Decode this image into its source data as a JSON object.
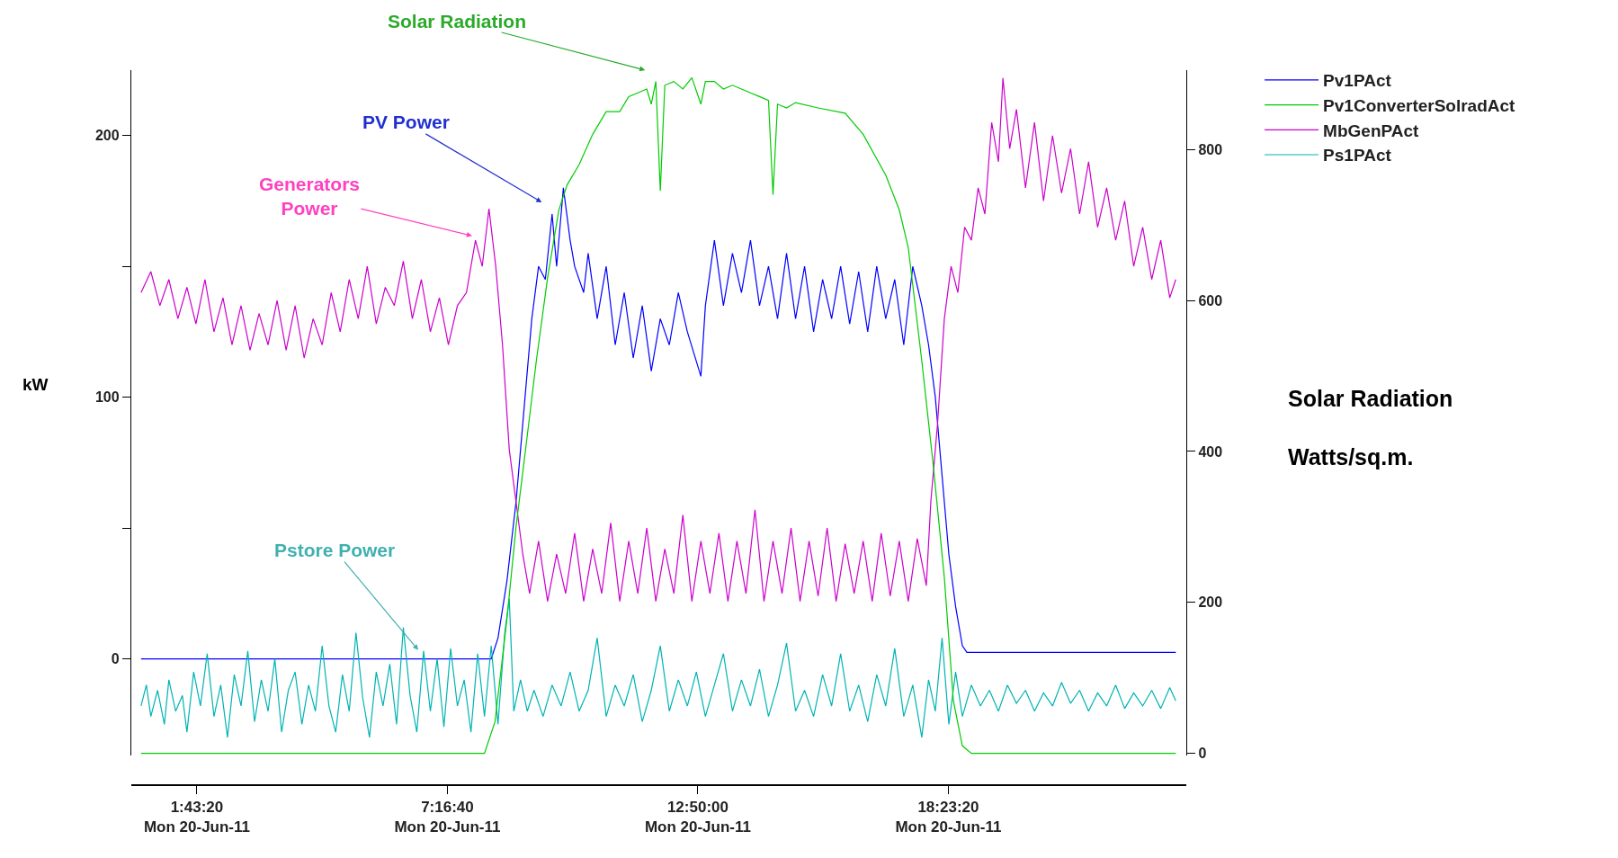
{
  "chart_data": {
    "type": "line",
    "ylabel": "kW",
    "y2label": "Solar Radiation\nWatts/sq.m.",
    "legend": "top right",
    "annotations": [
      "Solar Radiation",
      "PV Power",
      "Generators\nPower",
      "Pstore Power"
    ],
    "xlim": [
      "--06-20T00:16",
      "--06-20T23:40"
    ],
    "xticks": [
      {
        "value": "--06-20T01:43:20",
        "label": "1:43:20\nMon 20-Jun-11"
      },
      {
        "value": "--06-20T07:16:40",
        "label": "7:16:40\nMon 20-Jun-11"
      },
      {
        "value": "--06-20T12:50:00",
        "label": "12:50:00\nMon 20-Jun-11"
      },
      {
        "value": "--06-20T18:23:20",
        "label": "18:23:20\nMon 20-Jun-11"
      }
    ],
    "ylim": [
      -37,
      225
    ],
    "yticks": [
      0,
      {
        "value": 50,
        "label": null
      },
      100,
      {
        "value": 150,
        "label": null
      },
      200
    ],
    "y2lim": [
      -3,
      905
    ],
    "y2ticks": [
      0,
      200,
      400,
      600,
      800
    ],
    "series": [
      {
        "name": "Pv1PAct",
        "color": "#0000ff",
        "x": [
          "--06-20T00:29",
          "--06-20T08:15",
          "--06-20T08:24",
          "--06-20T08:36",
          "--06-20T08:48",
          "--06-20T09:00",
          "--06-20T09:09",
          "--06-20T09:18",
          "--06-20T09:27",
          "--06-20T09:36",
          "--06-20T09:42",
          "--06-20T09:51",
          "--06-20T10:00",
          "--06-20T10:06",
          "--06-20T10:18",
          "--06-20T10:24",
          "--06-20T10:36",
          "--06-20T10:48",
          "--06-20T11:00",
          "--06-20T11:12",
          "--06-20T11:24",
          "--06-20T11:36",
          "--06-20T11:48",
          "--06-20T12:00",
          "--06-20T12:12",
          "--06-20T12:24",
          "--06-20T12:36",
          "--06-20T12:54",
          "--06-20T13:00",
          "--06-20T13:12",
          "--06-20T13:24",
          "--06-20T13:36",
          "--06-20T13:48",
          "--06-20T14:00",
          "--06-20T14:12",
          "--06-20T14:24",
          "--06-20T14:36",
          "--06-20T14:48",
          "--06-20T15:00",
          "--06-20T15:12",
          "--06-20T15:24",
          "--06-20T15:36",
          "--06-20T15:48",
          "--06-20T16:00",
          "--06-20T16:12",
          "--06-20T16:24",
          "--06-20T16:36",
          "--06-20T16:48",
          "--06-20T17:00",
          "--06-20T17:12",
          "--06-20T17:24",
          "--06-20T17:36",
          "--06-20T17:48",
          "--06-20T17:57",
          "--06-20T18:06",
          "--06-20T18:15",
          "--06-20T18:24",
          "--06-20T18:33",
          "--06-20T18:42",
          "--06-20T18:48",
          "--06-20T23:26"
        ],
        "values": [
          0,
          0,
          8,
          30,
          60,
          100,
          130,
          150,
          145,
          170,
          150,
          180,
          160,
          150,
          140,
          155,
          130,
          150,
          120,
          140,
          115,
          135,
          110,
          130,
          120,
          140,
          125,
          108,
          135,
          160,
          135,
          155,
          140,
          160,
          135,
          150,
          130,
          155,
          130,
          150,
          125,
          145,
          130,
          150,
          128,
          148,
          125,
          150,
          130,
          145,
          120,
          150,
          135,
          120,
          100,
          70,
          40,
          20,
          5,
          2.5,
          2.5
        ]
      },
      {
        "name": "Pv1ConverterSolradAct",
        "color": "#00cc00",
        "axis": "y2",
        "x": [
          "--06-20T00:29",
          "--06-20T08:06",
          "--06-20T08:20",
          "--06-20T08:36",
          "--06-20T08:48",
          "--06-20T09:00",
          "--06-20T09:15",
          "--06-20T09:30",
          "--06-20T09:45",
          "--06-20T09:56",
          "--06-20T10:12",
          "--06-20T10:30",
          "--06-20T10:48",
          "--06-20T11:06",
          "--06-20T11:18",
          "--06-20T11:30",
          "--06-20T11:42",
          "--06-20T11:48",
          "--06-20T11:54",
          "--06-20T12:00",
          "--06-20T12:06",
          "--06-20T12:18",
          "--06-20T12:30",
          "--06-20T12:42",
          "--06-20T12:54",
          "--06-20T13:00",
          "--06-20T13:12",
          "--06-20T13:24",
          "--06-20T13:36",
          "--06-20T13:48",
          "--06-20T14:00",
          "--06-20T14:12",
          "--06-20T14:24",
          "--06-20T14:30",
          "--06-20T14:36",
          "--06-20T14:48",
          "--06-20T15:00",
          "--06-20T15:30",
          "--06-20T16:06",
          "--06-20T16:30",
          "--06-20T17:00",
          "--06-20T17:18",
          "--06-20T17:30",
          "--06-20T17:48",
          "--06-20T18:03",
          "--06-20T18:18",
          "--06-20T18:30",
          "--06-20T18:42",
          "--06-20T18:54",
          "--06-20T23:26"
        ],
        "values": [
          0,
          0,
          42,
          179,
          300,
          397,
          520,
          630,
          720,
          753,
          780,
          820,
          850,
          850,
          870,
          875,
          880,
          860,
          890,
          745,
          885,
          890,
          880,
          895,
          860,
          890,
          890,
          880,
          885,
          880,
          875,
          870,
          865,
          740,
          860,
          855,
          862,
          855,
          848,
          820,
          766,
          720,
          670,
          520,
          384,
          233,
          70,
          10,
          0,
          0
        ]
      },
      {
        "name": "MbGenPAct",
        "color": "#cc00cc",
        "x": [
          "--06-20T00:29",
          "--06-20T00:42",
          "--06-20T00:54",
          "--06-20T01:06",
          "--06-20T01:18",
          "--06-20T01:30",
          "--06-20T01:42",
          "--06-20T01:54",
          "--06-20T02:06",
          "--06-20T02:18",
          "--06-20T02:30",
          "--06-20T02:42",
          "--06-20T02:54",
          "--06-20T03:06",
          "--06-20T03:18",
          "--06-20T03:30",
          "--06-20T03:42",
          "--06-20T03:54",
          "--06-20T04:06",
          "--06-20T04:18",
          "--06-20T04:30",
          "--06-20T04:42",
          "--06-20T04:54",
          "--06-20T05:06",
          "--06-20T05:18",
          "--06-20T05:30",
          "--06-20T05:42",
          "--06-20T05:54",
          "--06-20T06:06",
          "--06-20T06:18",
          "--06-20T06:30",
          "--06-20T06:42",
          "--06-20T06:54",
          "--06-20T07:06",
          "--06-20T07:18",
          "--06-20T07:30",
          "--06-20T07:42",
          "--06-20T07:54",
          "--06-20T08:03",
          "--06-20T08:12",
          "--06-20T08:21",
          "--06-20T08:30",
          "--06-20T08:39",
          "--06-20T08:48",
          "--06-20T08:57",
          "--06-20T09:06",
          "--06-20T09:18",
          "--06-20T09:30",
          "--06-20T09:42",
          "--06-20T09:54",
          "--06-20T10:06",
          "--06-20T10:18",
          "--06-20T10:30",
          "--06-20T10:42",
          "--06-20T10:54",
          "--06-20T11:06",
          "--06-20T11:18",
          "--06-20T11:30",
          "--06-20T11:42",
          "--06-20T11:54",
          "--06-20T12:06",
          "--06-20T12:18",
          "--06-20T12:30",
          "--06-20T12:42",
          "--06-20T12:54",
          "--06-20T13:06",
          "--06-20T13:18",
          "--06-20T13:30",
          "--06-20T13:42",
          "--06-20T13:54",
          "--06-20T14:06",
          "--06-20T14:18",
          "--06-20T14:30",
          "--06-20T14:42",
          "--06-20T14:54",
          "--06-20T15:06",
          "--06-20T15:18",
          "--06-20T15:30",
          "--06-20T15:42",
          "--06-20T15:54",
          "--06-20T16:06",
          "--06-20T16:18",
          "--06-20T16:30",
          "--06-20T16:42",
          "--06-20T16:54",
          "--06-20T17:06",
          "--06-20T17:18",
          "--06-20T17:30",
          "--06-20T17:42",
          "--06-20T17:54",
          "--06-20T18:00",
          "--06-20T18:09",
          "--06-20T18:18",
          "--06-20T18:27",
          "--06-20T18:36",
          "--06-20T18:45",
          "--06-20T18:54",
          "--06-20T19:03",
          "--06-20T19:12",
          "--06-20T19:21",
          "--06-20T19:30",
          "--06-20T19:36",
          "--06-20T19:45",
          "--06-20T19:54",
          "--06-20T20:06",
          "--06-20T20:18",
          "--06-20T20:30",
          "--06-20T20:42",
          "--06-20T20:54",
          "--06-20T21:06",
          "--06-20T21:18",
          "--06-20T21:30",
          "--06-20T21:42",
          "--06-20T21:54",
          "--06-20T22:06",
          "--06-20T22:18",
          "--06-20T22:30",
          "--06-20T22:42",
          "--06-20T22:54",
          "--06-20T23:06",
          "--06-20T23:18",
          "--06-20T23:26"
        ],
        "values": [
          140,
          148,
          135,
          145,
          130,
          142,
          128,
          145,
          125,
          138,
          120,
          135,
          118,
          132,
          120,
          137,
          118,
          135,
          115,
          130,
          120,
          140,
          125,
          145,
          130,
          150,
          128,
          142,
          135,
          152,
          130,
          145,
          125,
          138,
          120,
          135,
          140,
          160,
          150,
          172,
          150,
          120,
          80,
          60,
          40,
          25,
          45,
          22,
          40,
          25,
          48,
          22,
          42,
          25,
          52,
          22,
          45,
          25,
          50,
          22,
          42,
          25,
          55,
          22,
          45,
          25,
          48,
          22,
          45,
          25,
          57,
          22,
          45,
          25,
          50,
          22,
          45,
          24,
          50,
          22,
          44,
          25,
          45,
          22,
          48,
          24,
          45,
          22,
          46,
          28,
          60,
          90,
          130,
          150,
          140,
          165,
          160,
          180,
          170,
          205,
          190,
          222,
          195,
          210,
          180,
          205,
          175,
          200,
          178,
          195,
          170,
          190,
          165,
          180,
          160,
          175,
          150,
          165,
          145,
          160,
          138,
          145
        ]
      },
      {
        "name": "Ps1PAct",
        "color": "#00b3b3",
        "x": [
          "--06-20T00:29",
          "--06-20T00:36",
          "--06-20T00:42",
          "--06-20T00:51",
          "--06-20T01:00",
          "--06-20T01:06",
          "--06-20T01:15",
          "--06-20T01:24",
          "--06-20T01:30",
          "--06-20T01:39",
          "--06-20T01:48",
          "--06-20T01:57",
          "--06-20T02:06",
          "--06-20T02:15",
          "--06-20T02:24",
          "--06-20T02:33",
          "--06-20T02:42",
          "--06-20T02:51",
          "--06-20T03:00",
          "--06-20T03:09",
          "--06-20T03:18",
          "--06-20T03:27",
          "--06-20T03:36",
          "--06-20T03:45",
          "--06-20T03:54",
          "--06-20T04:03",
          "--06-20T04:12",
          "--06-20T04:21",
          "--06-20T04:30",
          "--06-20T04:39",
          "--06-20T04:48",
          "--06-20T04:57",
          "--06-20T05:06",
          "--06-20T05:15",
          "--06-20T05:24",
          "--06-20T05:33",
          "--06-20T05:42",
          "--06-20T05:51",
          "--06-20T06:00",
          "--06-20T06:09",
          "--06-20T06:18",
          "--06-20T06:27",
          "--06-20T06:36",
          "--06-20T06:45",
          "--06-20T06:54",
          "--06-20T07:03",
          "--06-20T07:12",
          "--06-20T07:21",
          "--06-20T07:30",
          "--06-20T07:39",
          "--06-20T07:48",
          "--06-20T07:57",
          "--06-20T08:06",
          "--06-20T08:15",
          "--06-20T08:24",
          "--06-20T08:33",
          "--06-20T08:39",
          "--06-20T08:45",
          "--06-20T08:54",
          "--06-20T09:03",
          "--06-20T09:12",
          "--06-20T09:24",
          "--06-20T09:36",
          "--06-20T09:48",
          "--06-20T10:00",
          "--06-20T10:12",
          "--06-20T10:24",
          "--06-20T10:36",
          "--06-20T10:48",
          "--06-20T11:00",
          "--06-20T11:12",
          "--06-20T11:24",
          "--06-20T11:36",
          "--06-20T11:48",
          "--06-20T12:00",
          "--06-20T12:12",
          "--06-20T12:24",
          "--06-20T12:36",
          "--06-20T12:48",
          "--06-20T13:00",
          "--06-20T13:12",
          "--06-20T13:24",
          "--06-20T13:36",
          "--06-20T13:48",
          "--06-20T14:00",
          "--06-20T14:12",
          "--06-20T14:24",
          "--06-20T14:36",
          "--06-20T14:48",
          "--06-20T15:00",
          "--06-20T15:12",
          "--06-20T15:24",
          "--06-20T15:36",
          "--06-20T15:48",
          "--06-20T16:00",
          "--06-20T16:12",
          "--06-20T16:24",
          "--06-20T16:36",
          "--06-20T16:48",
          "--06-20T17:00",
          "--06-20T17:12",
          "--06-20T17:24",
          "--06-20T17:36",
          "--06-20T17:48",
          "--06-20T17:57",
          "--06-20T18:06",
          "--06-20T18:15",
          "--06-20T18:24",
          "--06-20T18:33",
          "--06-20T18:42",
          "--06-20T18:54",
          "--06-20T19:06",
          "--06-20T19:18",
          "--06-20T19:30",
          "--06-20T19:42",
          "--06-20T19:54",
          "--06-20T20:06",
          "--06-20T20:18",
          "--06-20T20:30",
          "--06-20T20:42",
          "--06-20T20:54",
          "--06-20T21:06",
          "--06-20T21:18",
          "--06-20T21:30",
          "--06-20T21:42",
          "--06-20T21:54",
          "--06-20T22:06",
          "--06-20T22:18",
          "--06-20T22:30",
          "--06-20T22:42",
          "--06-20T22:54",
          "--06-20T23:06",
          "--06-20T23:18",
          "--06-20T23:26"
        ],
        "values": [
          -18,
          -10,
          -22,
          -12,
          -25,
          -8,
          -20,
          -14,
          -28,
          -5,
          -18,
          2,
          -22,
          -10,
          -30,
          -6,
          -18,
          3,
          -24,
          -8,
          -20,
          0,
          -28,
          -12,
          -5,
          -25,
          -10,
          -20,
          5,
          -18,
          -28,
          -6,
          -20,
          10,
          -15,
          -30,
          -5,
          -18,
          -2,
          -25,
          12,
          -14,
          -28,
          3,
          -20,
          0,
          -26,
          4,
          -18,
          -8,
          -28,
          2,
          -22,
          5,
          -25,
          10,
          23,
          -20,
          -8,
          -20,
          -12,
          -22,
          -10,
          -18,
          -5,
          -20,
          -12,
          8,
          -22,
          -10,
          -18,
          -6,
          -24,
          -12,
          5,
          -20,
          -8,
          -18,
          -5,
          -22,
          -10,
          2,
          -20,
          -8,
          -18,
          -4,
          -22,
          -10,
          6,
          -20,
          -12,
          -22,
          -6,
          -18,
          2,
          -20,
          -10,
          -24,
          -6,
          -18,
          4,
          -22,
          -10,
          -30,
          -8,
          -20,
          8,
          -25,
          -5,
          -22,
          -10,
          -18,
          -12,
          -20,
          -10,
          -17,
          -12,
          -20,
          -13,
          -18,
          -9,
          -17,
          -12,
          -20,
          -13,
          -18,
          -10,
          -19,
          -13,
          -18,
          -12,
          -19,
          -11,
          -16
        ]
      }
    ]
  }
}
